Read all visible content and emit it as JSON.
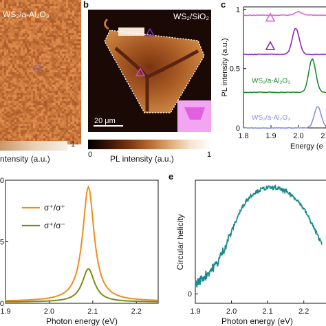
{
  "panel_letters": {
    "b": "b",
    "c": "c",
    "e": "e"
  },
  "panel_a": {
    "map_label": "WS₂/a-Al₂O₃",
    "colorbar_max": "1",
    "colorbar_label": "ntensity (a.u.)",
    "marker_color": "#8060c0"
  },
  "panel_b": {
    "map_label": "WS₂/SiO₂",
    "scalebar_label": "20 μm",
    "colorbar_min": "0",
    "colorbar_max": "1",
    "colorbar_label": "PL intensity (a.u.)",
    "marker_colors": [
      "#8030c0",
      "#e040e0"
    ],
    "inset_color": "#e060e0"
  },
  "chart_data": [
    {
      "id": "c",
      "type": "line",
      "ylabel": "PL intensity (a.u.)",
      "xlabel": "Energy (e",
      "x_ticks": [
        "1.8",
        "1.9",
        "2.0",
        "2.1"
      ],
      "y_ticks": [
        "0",
        "0.5",
        "1"
      ],
      "xlim": [
        1.8,
        2.1
      ],
      "series": [
        {
          "name": "",
          "color": "#e060e0",
          "offset": 0.95,
          "peak_x": 2.0,
          "peak_height": 0.03,
          "legend_marker": "triangle-pink"
        },
        {
          "name": "",
          "color": "#8e24c0",
          "offset": 0.62,
          "peak_x": 1.99,
          "peak_height": 0.22,
          "legend_marker": "triangle-purple"
        },
        {
          "name": "WS₂/a-Al₂O₃",
          "color": "#1a8a2a",
          "offset": 0.3,
          "peak_x": 2.05,
          "peak_height": 0.28
        },
        {
          "name": "WS₂/a-Al₂O₃",
          "color": "#8890e0",
          "offset": 0.0,
          "peak_x": 2.07,
          "peak_height": 0.18
        }
      ]
    },
    {
      "id": "d",
      "type": "line",
      "xlabel": "Photon energy (eV)",
      "ylabel": "",
      "x_ticks": [
        "1.9",
        "2.0",
        "2.1",
        "2.2"
      ],
      "y_tick_fragments": [
        "00",
        ".5",
        "0"
      ],
      "xlim": [
        1.9,
        2.25
      ],
      "ylim": [
        0,
        1.0
      ],
      "series": [
        {
          "name": "σ⁺/σ⁺",
          "color": "#f08c1e",
          "peak_x": 2.09,
          "peak_y": 0.93,
          "width": 0.016,
          "baseline": 0.015
        },
        {
          "name": "σ⁺/σ⁻",
          "color": "#7c8a14",
          "peak_x": 2.09,
          "peak_y": 0.27,
          "width": 0.017,
          "baseline": 0.01
        }
      ]
    },
    {
      "id": "e",
      "type": "line",
      "xlabel": "Photon energy (eV)",
      "ylabel": "Circular helicity",
      "x_ticks": [
        "1.9",
        "2.0",
        "2.1",
        "2.2"
      ],
      "y_ticks": [
        "0"
      ],
      "xlim": [
        1.9,
        2.25
      ],
      "ylim": [
        -0.05,
        0.6
      ],
      "series": [
        {
          "name": "",
          "color": "#1b8a8a",
          "x": [
            1.9,
            1.93,
            1.96,
            1.98,
            2.0,
            2.02,
            2.04,
            2.06,
            2.08,
            2.1,
            2.12,
            2.14,
            2.16,
            2.18,
            2.2,
            2.22,
            2.24,
            2.25
          ],
          "y": [
            0.05,
            0.1,
            0.16,
            0.24,
            0.33,
            0.42,
            0.49,
            0.53,
            0.55,
            0.56,
            0.56,
            0.55,
            0.53,
            0.5,
            0.45,
            0.38,
            0.3,
            0.27
          ]
        }
      ]
    }
  ]
}
